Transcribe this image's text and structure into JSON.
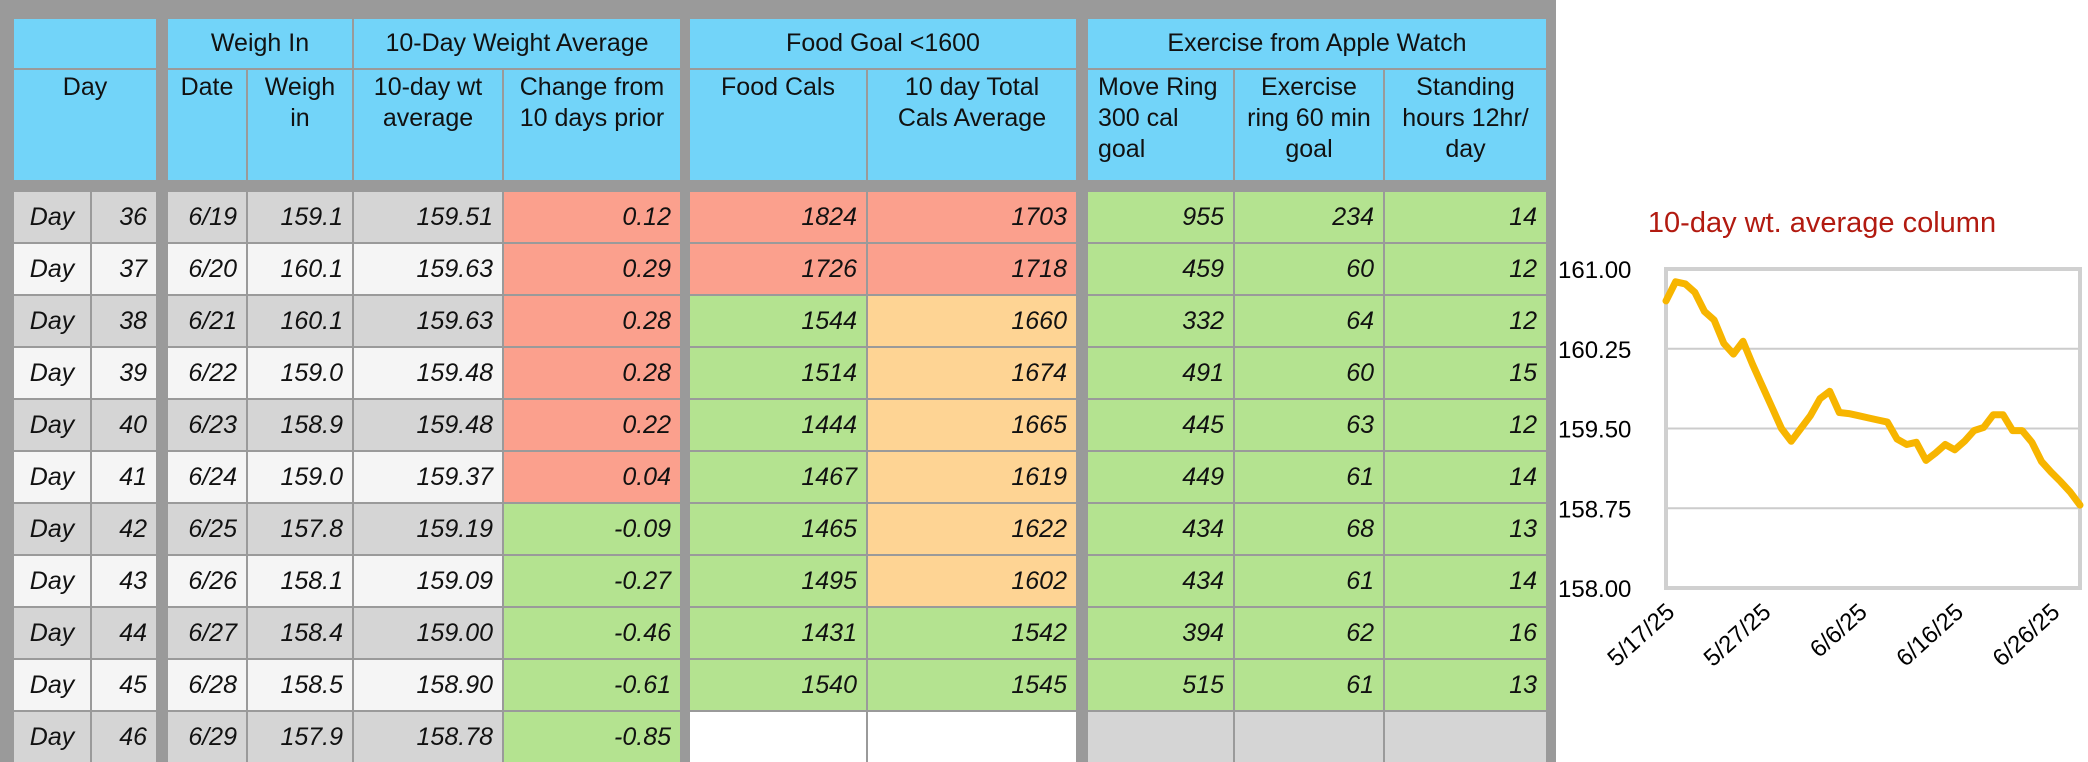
{
  "headers": {
    "group": {
      "weigh_in": "Weigh In",
      "avg10": "10-Day Weight Average",
      "food": "Food Goal <1600",
      "exercise": "Exercise from Apple Watch"
    },
    "cols": {
      "day": "Day",
      "date": "Date",
      "weigh": "Weigh\nin",
      "wt_avg": "10-day wt\naverage",
      "change": "Change from\n10 days prior",
      "food_cals": "Food Cals",
      "total_cals": "10 day Total\nCals Average",
      "move": "Move Ring\n300 cal\ngoal",
      "exercise_ring": "Exercise\nring 60 min\ngoal",
      "standing": "Standing\nhours 12hr/\nday"
    }
  },
  "rows": [
    {
      "label": "Day",
      "n": "36",
      "date": "6/19",
      "weigh": "159.1",
      "avg": "159.51",
      "change": "0.12",
      "food": "1824",
      "total": "1703",
      "move": "955",
      "ex": "234",
      "stand": "14"
    },
    {
      "label": "Day",
      "n": "37",
      "date": "6/20",
      "weigh": "160.1",
      "avg": "159.63",
      "change": "0.29",
      "food": "1726",
      "total": "1718",
      "move": "459",
      "ex": "60",
      "stand": "12"
    },
    {
      "label": "Day",
      "n": "38",
      "date": "6/21",
      "weigh": "160.1",
      "avg": "159.63",
      "change": "0.28",
      "food": "1544",
      "total": "1660",
      "move": "332",
      "ex": "64",
      "stand": "12"
    },
    {
      "label": "Day",
      "n": "39",
      "date": "6/22",
      "weigh": "159.0",
      "avg": "159.48",
      "change": "0.28",
      "food": "1514",
      "total": "1674",
      "move": "491",
      "ex": "60",
      "stand": "15"
    },
    {
      "label": "Day",
      "n": "40",
      "date": "6/23",
      "weigh": "158.9",
      "avg": "159.48",
      "change": "0.22",
      "food": "1444",
      "total": "1665",
      "move": "445",
      "ex": "63",
      "stand": "12"
    },
    {
      "label": "Day",
      "n": "41",
      "date": "6/24",
      "weigh": "159.0",
      "avg": "159.37",
      "change": "0.04",
      "food": "1467",
      "total": "1619",
      "move": "449",
      "ex": "61",
      "stand": "14"
    },
    {
      "label": "Day",
      "n": "42",
      "date": "6/25",
      "weigh": "157.8",
      "avg": "159.19",
      "change": "-0.09",
      "food": "1465",
      "total": "1622",
      "move": "434",
      "ex": "68",
      "stand": "13"
    },
    {
      "label": "Day",
      "n": "43",
      "date": "6/26",
      "weigh": "158.1",
      "avg": "159.09",
      "change": "-0.27",
      "food": "1495",
      "total": "1602",
      "move": "434",
      "ex": "61",
      "stand": "14"
    },
    {
      "label": "Day",
      "n": "44",
      "date": "6/27",
      "weigh": "158.4",
      "avg": "159.00",
      "change": "-0.46",
      "food": "1431",
      "total": "1542",
      "move": "394",
      "ex": "62",
      "stand": "16"
    },
    {
      "label": "Day",
      "n": "45",
      "date": "6/28",
      "weigh": "158.5",
      "avg": "158.90",
      "change": "-0.61",
      "food": "1540",
      "total": "1545",
      "move": "515",
      "ex": "61",
      "stand": "13"
    },
    {
      "label": "Day",
      "n": "46",
      "date": "6/29",
      "weigh": "157.9",
      "avg": "158.78",
      "change": "-0.85",
      "food": "",
      "total": "",
      "move": "",
      "ex": "",
      "stand": ""
    }
  ],
  "colors": {
    "header": "#72d4f9",
    "red": "#fba08d",
    "green": "#b4e390",
    "orange": "#fed494",
    "title": "#b21a10",
    "line": "#f7b500"
  },
  "chart_data": {
    "type": "line",
    "title": "10-day wt. average column",
    "yticks": [
      "161.00",
      "160.25",
      "159.50",
      "158.75",
      "158.00"
    ],
    "ylim": [
      158.0,
      161.0
    ],
    "xticks": [
      "5/17/25",
      "5/27/25",
      "6/6/25",
      "6/16/25",
      "6/26/25"
    ],
    "x": [
      "5/17/25",
      "5/18/25",
      "5/19/25",
      "5/20/25",
      "5/21/25",
      "5/22/25",
      "5/23/25",
      "5/24/25",
      "5/25/25",
      "5/26/25",
      "5/27/25",
      "5/28/25",
      "5/29/25",
      "5/30/25",
      "5/31/25",
      "6/1/25",
      "6/2/25",
      "6/3/25",
      "6/4/25",
      "6/5/25",
      "6/6/25",
      "6/7/25",
      "6/8/25",
      "6/9/25",
      "6/10/25",
      "6/11/25",
      "6/12/25",
      "6/13/25",
      "6/14/25",
      "6/15/25",
      "6/16/25",
      "6/17/25",
      "6/18/25",
      "6/19/25",
      "6/20/25",
      "6/21/25",
      "6/22/25",
      "6/23/25",
      "6/24/25",
      "6/25/25",
      "6/26/25",
      "6/27/25",
      "6/28/25",
      "6/29/25"
    ],
    "series": [
      {
        "values": [
          160.7,
          160.88,
          160.86,
          160.78,
          160.6,
          160.52,
          160.3,
          160.2,
          160.32,
          160.1,
          159.9,
          159.7,
          159.5,
          159.38,
          159.5,
          159.62,
          159.78,
          159.85,
          159.65,
          159.64,
          159.62,
          159.6,
          159.58,
          159.56,
          159.4,
          159.35,
          159.37,
          159.2,
          159.27,
          159.35,
          159.3,
          159.38,
          159.48,
          159.51,
          159.63,
          159.63,
          159.48,
          159.48,
          159.37,
          159.19,
          159.09,
          159.0,
          158.9,
          158.78
        ]
      }
    ],
    "grid": true,
    "legend": "none"
  }
}
